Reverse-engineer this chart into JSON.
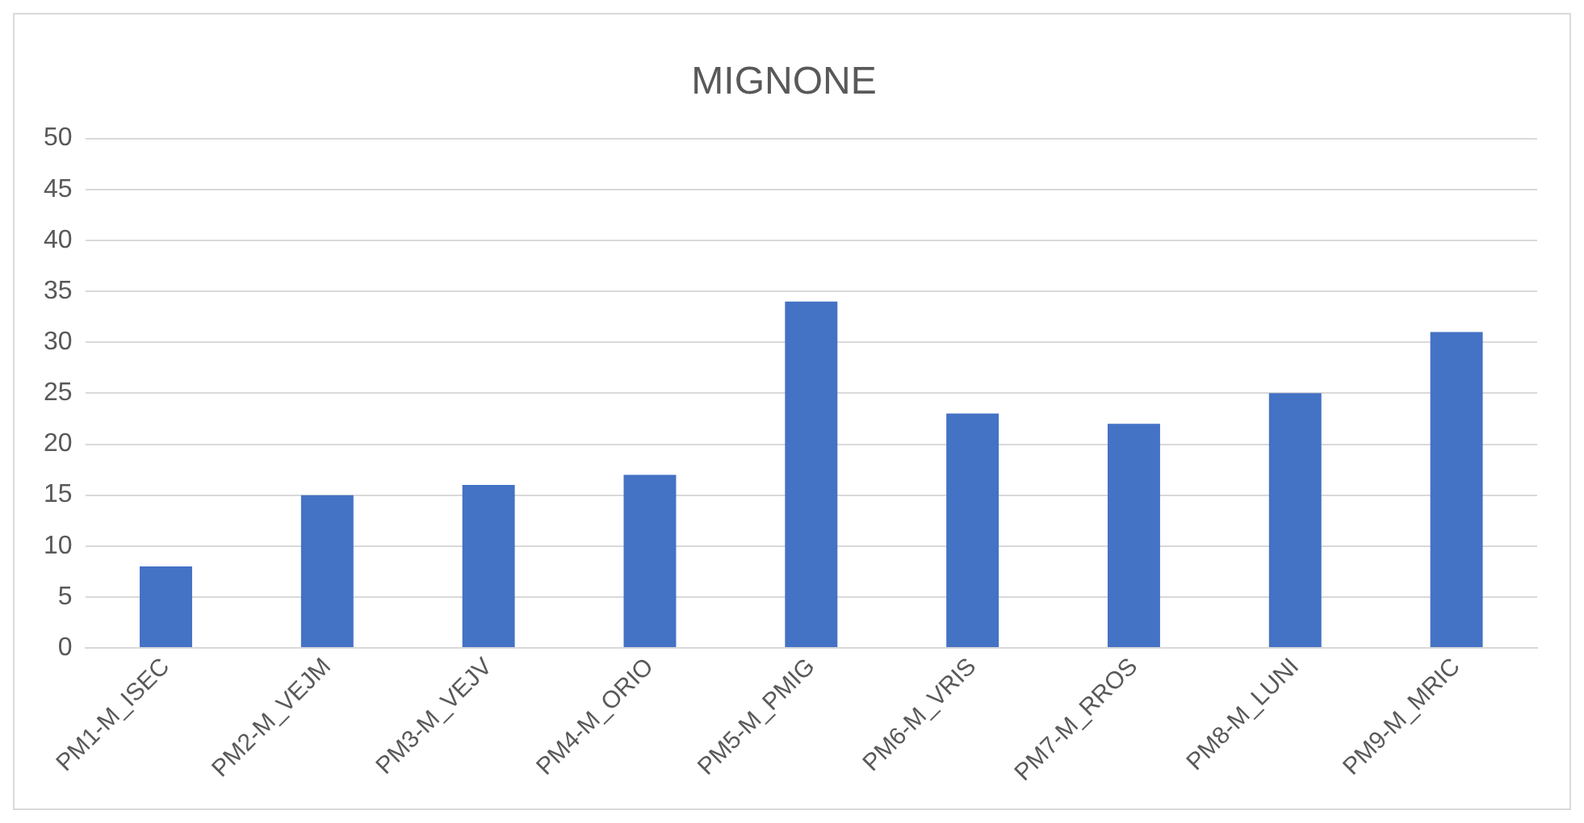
{
  "chart_data": {
    "type": "bar",
    "title": "MIGNONE",
    "categories": [
      "PM1-M_ISEC",
      "PM2-M_VEJM",
      "PM3-M_VEJV",
      "PM4-M_ORIO",
      "PM5-M_PMIG",
      "PM6-M_VRIS",
      "PM7-M_RROS",
      "PM8-M_LUNI",
      "PM9-M_MRIC"
    ],
    "values": [
      8,
      15,
      16,
      17,
      34,
      23,
      22,
      25,
      31
    ],
    "color": "#4472c4",
    "ylim": [
      0,
      50
    ],
    "yticks": [
      0,
      5,
      10,
      15,
      20,
      25,
      30,
      35,
      40,
      45,
      50
    ],
    "grid": "y"
  }
}
